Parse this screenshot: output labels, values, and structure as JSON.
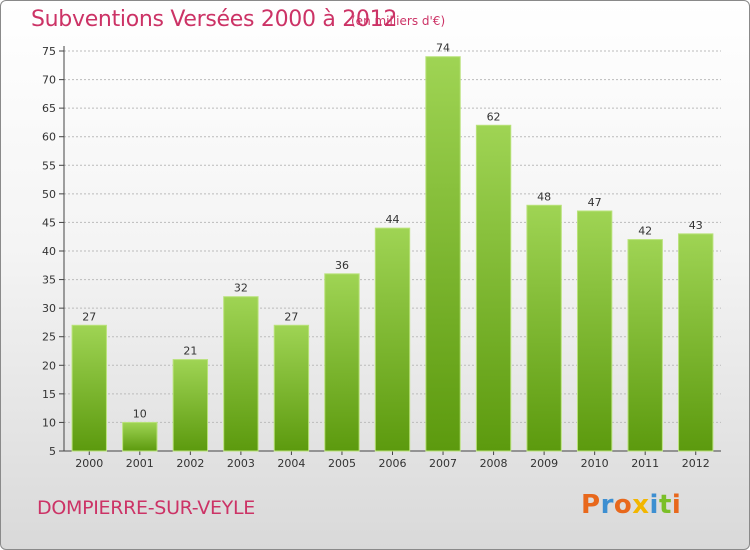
{
  "header": {
    "title": "Subventions Versées 2000 à 2012",
    "subtitle": "(en milliers d'€)"
  },
  "footer": {
    "commune": "DOMPIERRE-SUR-VEYLE",
    "logo_text": "Proxiti"
  },
  "colors": {
    "title": "#cc3366",
    "bar_top": "#9fd454",
    "bar_bottom": "#5c9a0e",
    "grid": "#bbbbbb",
    "logo_letters": [
      "#e8681c",
      "#3d8fd1",
      "#e8681c",
      "#f2b600",
      "#3d8fd1",
      "#7bbf28",
      "#e8681c"
    ]
  },
  "chart_data": {
    "type": "bar",
    "categories": [
      "2000",
      "2001",
      "2002",
      "2003",
      "2004",
      "2005",
      "2006",
      "2007",
      "2008",
      "2009",
      "2010",
      "2011",
      "2012"
    ],
    "values": [
      27,
      10,
      21,
      32,
      27,
      36,
      44,
      74,
      62,
      48,
      47,
      42,
      43
    ],
    "title": "Subventions Versées 2000 à 2012",
    "ylim": [
      5,
      75
    ],
    "yticks": [
      5,
      10,
      15,
      20,
      25,
      30,
      35,
      40,
      45,
      50,
      55,
      60,
      65,
      70,
      75
    ],
    "grid": true,
    "data_labels": true
  }
}
